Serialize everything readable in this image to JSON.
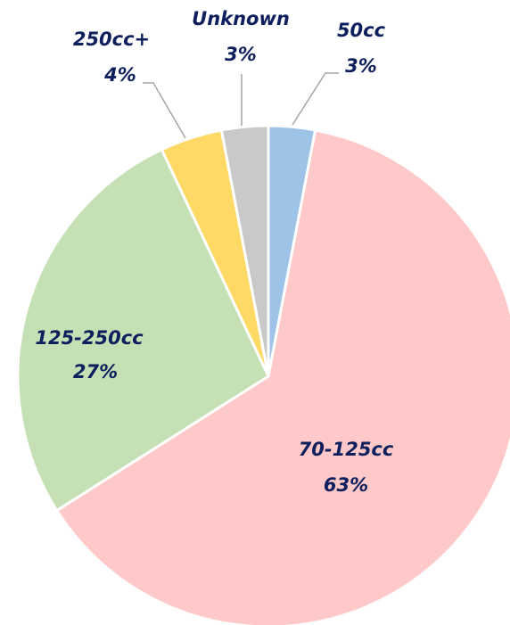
{
  "chart_data": {
    "type": "pie",
    "categories": [
      "50cc",
      "70-125cc",
      "125-250cc",
      "250cc+",
      "Unknown"
    ],
    "values": [
      3,
      63,
      27,
      4,
      3
    ],
    "value_labels": [
      "3%",
      "63%",
      "27%",
      "4%",
      "3%"
    ],
    "colors": [
      "#9dc3e6",
      "#ffc9c9",
      "#c5e0b4",
      "#ffd966",
      "#c9c9c9"
    ]
  }
}
